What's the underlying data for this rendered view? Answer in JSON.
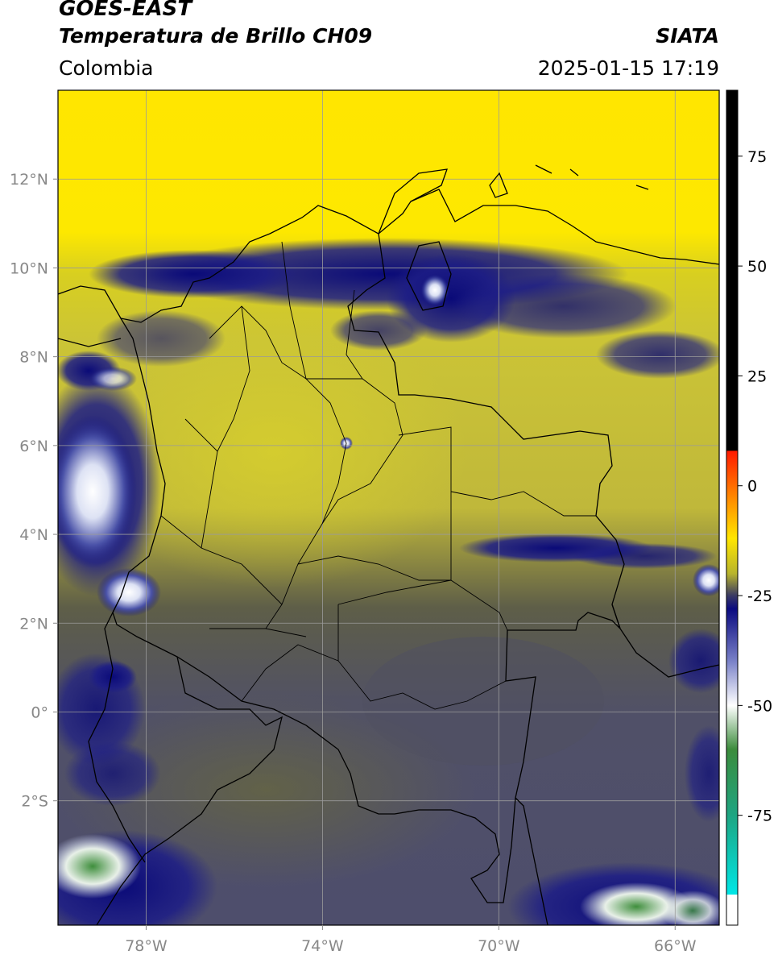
{
  "header": {
    "satellite": "GOES-EAST",
    "product": "Temperatura de Brillo CH09",
    "region": "Colombia",
    "agency": "SIATA",
    "datetime": "2025-01-15 17:19"
  },
  "map": {
    "lon_range": [
      -80,
      -65
    ],
    "lat_range": [
      -4.8,
      14.0
    ],
    "lon_ticks": [
      {
        "value": -78,
        "label": "78°W"
      },
      {
        "value": -74,
        "label": "74°W"
      },
      {
        "value": -70,
        "label": "70°W"
      },
      {
        "value": -66,
        "label": "66°W"
      }
    ],
    "lat_ticks": [
      {
        "value": 12,
        "label": "12°N"
      },
      {
        "value": 10,
        "label": "10°N"
      },
      {
        "value": 8,
        "label": "8°N"
      },
      {
        "value": 6,
        "label": "6°N"
      },
      {
        "value": 4,
        "label": "4°N"
      },
      {
        "value": 2,
        "label": "2°N"
      },
      {
        "value": 0,
        "label": "0°"
      },
      {
        "value": -2,
        "label": "2°S"
      }
    ],
    "grid": true
  },
  "colorbar": {
    "range": [
      -100,
      90
    ],
    "ticks": [
      {
        "value": 75,
        "label": "75"
      },
      {
        "value": 50,
        "label": "50"
      },
      {
        "value": 25,
        "label": "25"
      },
      {
        "value": 0,
        "label": "0"
      },
      {
        "value": -25,
        "label": "-25"
      },
      {
        "value": -50,
        "label": "-50"
      },
      {
        "value": -75,
        "label": "-75"
      }
    ],
    "stops": [
      {
        "value": 90,
        "color": "#000000"
      },
      {
        "value": 8,
        "color": "#000000"
      },
      {
        "value": 7.9,
        "color": "#ff1a00"
      },
      {
        "value": -3,
        "color": "#ff8c00"
      },
      {
        "value": -12,
        "color": "#ffe600"
      },
      {
        "value": -20,
        "color": "#b8b42c"
      },
      {
        "value": -25,
        "color": "#3a3a64"
      },
      {
        "value": -28,
        "color": "#0a0a80"
      },
      {
        "value": -40,
        "color": "#7a82c8"
      },
      {
        "value": -50,
        "color": "#ffffff"
      },
      {
        "value": -60,
        "color": "#3c8c3c"
      },
      {
        "value": -75,
        "color": "#1ea582"
      },
      {
        "value": -93,
        "color": "#00e6e6"
      },
      {
        "value": -93.1,
        "color": "#ffffff"
      },
      {
        "value": -100,
        "color": "#ffffff"
      }
    ]
  },
  "colors": {
    "dry_yellow": "#ffe600",
    "mid_olive": "#c8c032",
    "dark_olive": "#5c5c3c",
    "deep_blue": "#14147e",
    "slate": "#4a4a5c",
    "cold_white": "#e8ecf8",
    "green": "#4a9a46"
  }
}
